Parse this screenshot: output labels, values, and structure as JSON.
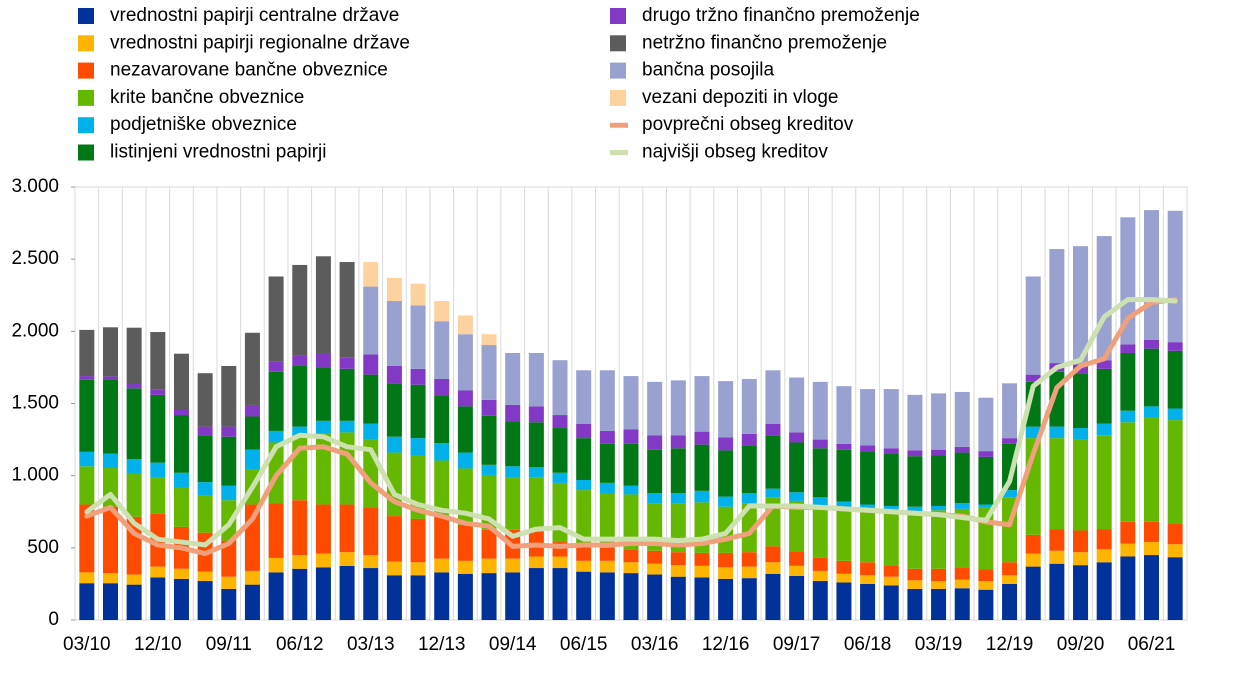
{
  "chart_data": {
    "type": "bar",
    "stacked": true,
    "categories": [
      "03/10",
      null,
      null,
      "12/10",
      null,
      null,
      "09/11",
      null,
      null,
      "06/12",
      null,
      null,
      "03/13",
      null,
      null,
      "12/13",
      null,
      null,
      "09/14",
      null,
      null,
      "06/15",
      null,
      null,
      "03/16",
      null,
      null,
      "12/16",
      null,
      null,
      "09/17",
      null,
      null,
      "06/18",
      null,
      null,
      "03/19",
      null,
      null,
      "12/19",
      null,
      null,
      "09/20",
      null,
      null,
      "06/21",
      null
    ],
    "ylim": [
      0,
      3000
    ],
    "yticks": [
      0,
      {
        "value": 500,
        "label": "500"
      },
      {
        "value": 1000,
        "label": "1.000"
      },
      {
        "value": 1500,
        "label": "1.500"
      },
      {
        "value": 2000,
        "label": "2.000"
      },
      {
        "value": 2500,
        "label": "2.500"
      },
      {
        "value": 3000,
        "label": "3.000"
      }
    ],
    "series": [
      {
        "name": "vrednostni papirji centralne države",
        "color": "#003299",
        "values": [
          255,
          255,
          245,
          295,
          285,
          270,
          215,
          245,
          330,
          355,
          365,
          375,
          360,
          310,
          310,
          330,
          320,
          325,
          330,
          360,
          360,
          335,
          330,
          325,
          315,
          300,
          295,
          285,
          290,
          320,
          305,
          270,
          260,
          250,
          240,
          215,
          215,
          220,
          210,
          250,
          370,
          390,
          380,
          400,
          440,
          450,
          435
        ]
      },
      {
        "name": "vrednostni papirji regionalne države",
        "color": "#ffb400",
        "values": [
          75,
          70,
          70,
          75,
          70,
          65,
          85,
          95,
          100,
          95,
          95,
          95,
          90,
          95,
          90,
          95,
          90,
          100,
          95,
          80,
          80,
          75,
          80,
          75,
          75,
          80,
          80,
          80,
          80,
          80,
          70,
          70,
          60,
          60,
          60,
          60,
          55,
          60,
          60,
          60,
          90,
          90,
          90,
          90,
          90,
          90,
          90
        ]
      },
      {
        "name": "nezavarovane bančne obveznice",
        "color": "#ff4b00",
        "values": [
          470,
          460,
          400,
          365,
          290,
          270,
          250,
          460,
          380,
          380,
          340,
          330,
          330,
          315,
          300,
          300,
          250,
          200,
          200,
          170,
          100,
          100,
          90,
          90,
          90,
          90,
          90,
          100,
          100,
          110,
          100,
          90,
          90,
          90,
          80,
          80,
          85,
          85,
          80,
          90,
          130,
          150,
          150,
          140,
          150,
          140,
          140
        ]
      },
      {
        "name": "krite bančne obveznice",
        "color": "#65b800",
        "values": [
          265,
          268,
          300,
          250,
          270,
          255,
          280,
          240,
          420,
          440,
          490,
          500,
          470,
          440,
          440,
          380,
          390,
          380,
          360,
          380,
          410,
          390,
          380,
          380,
          330,
          340,
          350,
          320,
          340,
          340,
          350,
          360,
          370,
          380,
          390,
          400,
          405,
          405,
          430,
          450,
          670,
          630,
          630,
          650,
          690,
          720,
          720
        ]
      },
      {
        "name": "podjetniške obveznice",
        "color": "#00b1ea",
        "values": [
          100,
          100,
          100,
          105,
          105,
          95,
          100,
          140,
          80,
          70,
          90,
          80,
          110,
          110,
          120,
          120,
          110,
          70,
          80,
          70,
          70,
          70,
          70,
          60,
          70,
          70,
          80,
          70,
          70,
          60,
          60,
          60,
          40,
          20,
          20,
          30,
          30,
          40,
          20,
          50,
          80,
          80,
          80,
          80,
          80,
          80,
          80
        ]
      },
      {
        "name": "listinjeni vrednostni papirji",
        "color": "#007816",
        "values": [
          500,
          510,
          490,
          470,
          400,
          320,
          340,
          230,
          410,
          420,
          370,
          360,
          340,
          370,
          370,
          330,
          320,
          340,
          310,
          310,
          310,
          290,
          270,
          290,
          300,
          310,
          320,
          320,
          330,
          370,
          345,
          340,
          360,
          370,
          360,
          350,
          350,
          350,
          330,
          320,
          310,
          380,
          380,
          380,
          400,
          400,
          400
        ]
      },
      {
        "name": "drugo tržno finančno premoženje",
        "color": "#8139c6",
        "values": [
          25,
          25,
          30,
          35,
          35,
          65,
          70,
          80,
          70,
          70,
          100,
          80,
          140,
          120,
          110,
          115,
          110,
          110,
          115,
          110,
          90,
          100,
          90,
          100,
          100,
          90,
          90,
          90,
          80,
          80,
          70,
          60,
          40,
          40,
          40,
          40,
          40,
          40,
          40,
          40,
          50,
          60,
          60,
          60,
          60,
          60,
          60
        ]
      },
      {
        "name": "netržno finančno premoženje",
        "color": "#5c5c5c",
        "values": [
          320,
          340,
          390,
          400,
          390,
          370,
          420,
          500,
          590,
          630,
          670,
          660,
          0,
          0,
          0,
          0,
          0,
          0,
          0,
          0,
          0,
          0,
          0,
          0,
          0,
          0,
          0,
          0,
          0,
          0,
          0,
          0,
          0,
          0,
          0,
          0,
          0,
          0,
          0,
          0,
          0,
          0,
          0,
          0,
          0,
          0,
          0
        ]
      },
      {
        "name": "bančna posojila",
        "color": "#98a1d0",
        "values": [
          0,
          0,
          0,
          0,
          0,
          0,
          0,
          0,
          0,
          0,
          0,
          0,
          470,
          450,
          440,
          400,
          390,
          380,
          360,
          370,
          380,
          370,
          420,
          370,
          370,
          380,
          385,
          390,
          380,
          370,
          380,
          400,
          400,
          390,
          410,
          385,
          390,
          380,
          370,
          380,
          680,
          790,
          820,
          860,
          880,
          900,
          910
        ]
      },
      {
        "name": "vezani depoziti in vloge",
        "color": "#fdd29f",
        "values": [
          0,
          0,
          0,
          0,
          0,
          0,
          0,
          0,
          0,
          0,
          0,
          0,
          170,
          160,
          150,
          140,
          130,
          75,
          0,
          0,
          0,
          0,
          0,
          0,
          0,
          0,
          0,
          0,
          0,
          0,
          0,
          0,
          0,
          0,
          0,
          0,
          0,
          0,
          0,
          0,
          0,
          0,
          0,
          0,
          0,
          0,
          0
        ]
      },
      {
        "name": "povprečni obseg kreditov",
        "color": "#f0a07a",
        "type": "line",
        "values": [
          720,
          780,
          600,
          520,
          500,
          460,
          530,
          700,
          1000,
          1190,
          1200,
          1150,
          950,
          820,
          760,
          720,
          670,
          650,
          510,
          520,
          510,
          520,
          520,
          530,
          530,
          520,
          530,
          560,
          600,
          790,
          780,
          780,
          770,
          760,
          750,
          740,
          730,
          720,
          680,
          660,
          1150,
          1610,
          1760,
          1810,
          2090,
          2200,
          2220
        ]
      },
      {
        "name": "najvišji obseg kreditov",
        "color": "#cde0b0",
        "type": "line",
        "values": [
          750,
          870,
          670,
          560,
          540,
          520,
          660,
          920,
          1200,
          1280,
          1270,
          1200,
          1180,
          870,
          800,
          760,
          740,
          700,
          580,
          630,
          640,
          560,
          560,
          560,
          560,
          550,
          560,
          600,
          790,
          790,
          790,
          780,
          770,
          760,
          750,
          740,
          730,
          710,
          690,
          960,
          1620,
          1750,
          1800,
          2100,
          2220,
          2220,
          2210
        ]
      }
    ]
  }
}
